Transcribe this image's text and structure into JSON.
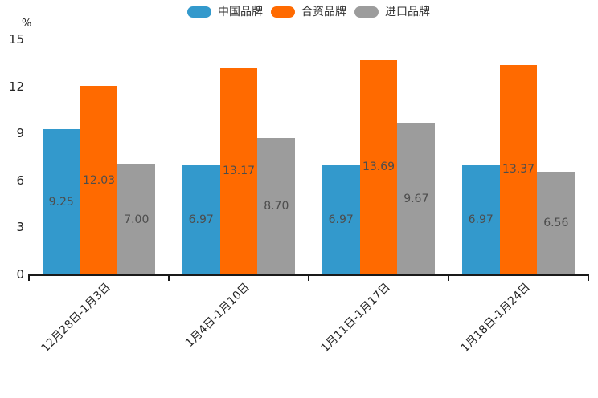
{
  "chart_data": {
    "type": "bar",
    "title": "",
    "ylabel": "%",
    "xlabel": "",
    "ylim": [
      0,
      15
    ],
    "yticks": [
      "0",
      "3",
      "6",
      "9",
      "12",
      "15"
    ],
    "grid": false,
    "legend_position": "top",
    "categories": [
      "12月28日-1月3日",
      "1月4日-1月10日",
      "1月11日-1月17日",
      "1月18日-1月24日"
    ],
    "series": [
      {
        "name": "中国品牌",
        "color": "#3399CC",
        "values": [
          9.25,
          6.97,
          6.97,
          6.97
        ],
        "labels": [
          "9.25",
          "6.97",
          "6.97",
          "6.97"
        ]
      },
      {
        "name": "合资品牌",
        "color": "#FF6A00",
        "values": [
          12.03,
          13.17,
          13.69,
          13.37
        ],
        "labels": [
          "12.03",
          "13.17",
          "13.69",
          "13.37"
        ]
      },
      {
        "name": "进口品牌",
        "color": "#9C9C9C",
        "values": [
          7.0,
          8.7,
          9.67,
          6.56
        ],
        "labels": [
          "7.00",
          "8.70",
          "9.67",
          "6.56"
        ]
      }
    ],
    "axis_color": "#1A1A1A",
    "tick_label_color": "#262626",
    "value_label_color": "#4D4D4D"
  }
}
